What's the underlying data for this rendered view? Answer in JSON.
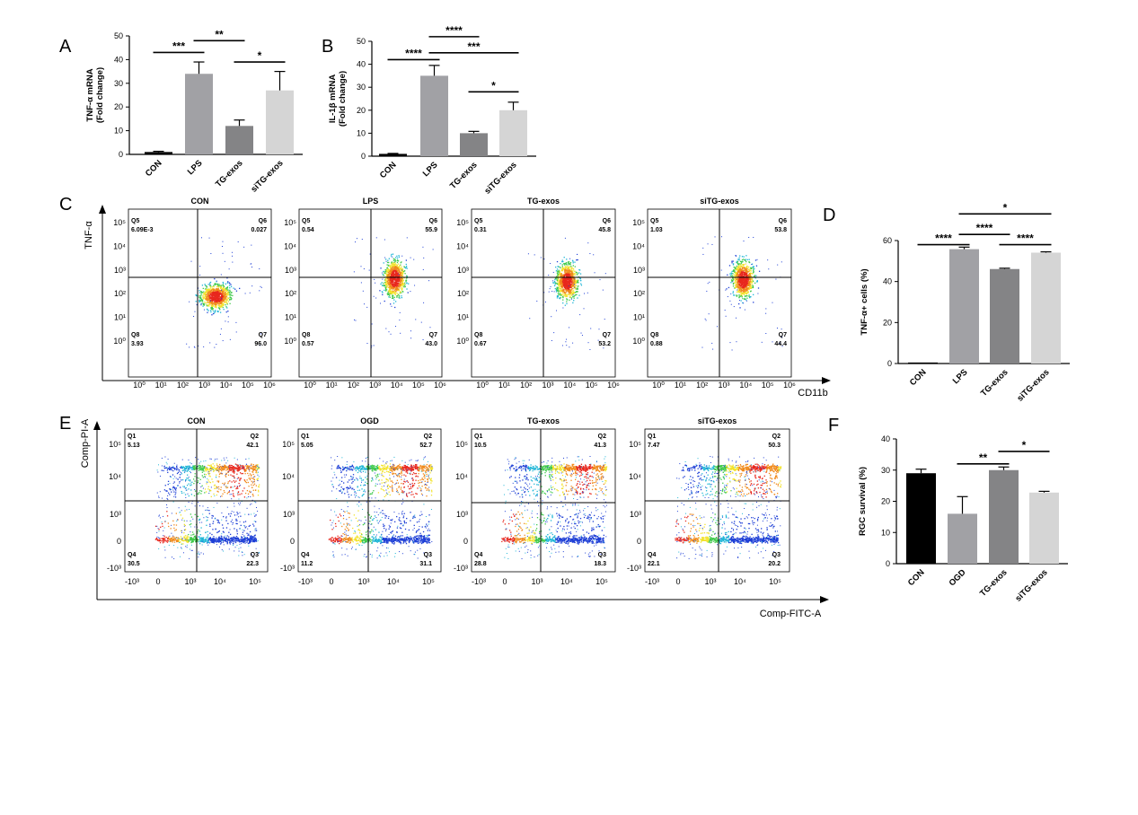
{
  "figure": {
    "panel_labels": [
      "A",
      "B",
      "C",
      "D",
      "E",
      "F"
    ],
    "flow_c": {
      "x_axis_label": "CD11b",
      "y_axis_label": "TNF-α",
      "x_ticks": [
        "10⁰",
        "10¹",
        "10²",
        "10³",
        "10⁴",
        "10⁵",
        "10⁶"
      ],
      "y_ticks": [
        "10⁰",
        "10¹",
        "10²",
        "10³",
        "10⁴",
        "10⁵"
      ]
    },
    "flow_e": {
      "x_axis_label": "Comp-FITC-A",
      "y_axis_label": "Comp-PI-A",
      "x_ticks": [
        "-10³",
        "0",
        "10³",
        "10⁴",
        "10⁵"
      ],
      "y_ticks": [
        "10⁵",
        "10⁴",
        "10³",
        "0",
        "-10³"
      ]
    }
  },
  "chart_data": [
    {
      "panel": "A",
      "type": "bar",
      "categories": [
        "CON",
        "LPS",
        "TG-exos",
        "siTG-exos"
      ],
      "values": [
        1,
        34,
        12,
        27
      ],
      "errors": [
        0.3,
        5,
        2.5,
        8
      ],
      "colors": [
        "#000000",
        "#a1a1a5",
        "#848486",
        "#d5d5d5"
      ],
      "ylabel": "TNF-α mRNA\n(Fold change)",
      "ylim": [
        0,
        50
      ],
      "yticks": [
        0,
        10,
        20,
        30,
        40,
        50
      ],
      "annotations": [
        {
          "from": "CON",
          "to": "LPS",
          "label": "***",
          "y": 43
        },
        {
          "from": "LPS",
          "to": "TG-exos",
          "label": "**",
          "y": 48
        },
        {
          "from": "TG-exos",
          "to": "siTG-exos",
          "label": "*",
          "y": 39
        }
      ]
    },
    {
      "panel": "B",
      "type": "bar",
      "categories": [
        "CON",
        "LPS",
        "TG-exos",
        "siTG-exos"
      ],
      "values": [
        1,
        35,
        10,
        20
      ],
      "errors": [
        0.2,
        4.5,
        0.8,
        3.5
      ],
      "colors": [
        "#000000",
        "#a1a1a5",
        "#848486",
        "#d5d5d5"
      ],
      "ylabel": "IL-1β mRNA\n(Fold change)",
      "ylim": [
        0,
        50
      ],
      "yticks": [
        0,
        10,
        20,
        30,
        40,
        50
      ],
      "annotations": [
        {
          "from": "CON",
          "to": "LPS",
          "label": "****",
          "y": 42
        },
        {
          "from": "LPS",
          "to": "TG-exos",
          "label": "****",
          "y": 52
        },
        {
          "from": "LPS",
          "to": "siTG-exos",
          "label": "***",
          "y": 45
        },
        {
          "from": "TG-exos",
          "to": "siTG-exos",
          "label": "*",
          "y": 28
        }
      ]
    },
    {
      "panel": "D",
      "type": "bar",
      "categories": [
        "CON",
        "LPS",
        "TG-exos",
        "siTG-exos"
      ],
      "values": [
        0.5,
        55.8,
        46.1,
        54.1
      ],
      "errors": [
        0,
        1,
        0.4,
        0.4
      ],
      "colors": [
        "#000000",
        "#a1a1a5",
        "#848486",
        "#d5d5d5"
      ],
      "ylabel": "TNF-α+ cells (%)",
      "ylim": [
        0,
        60
      ],
      "yticks": [
        0,
        20,
        40,
        60
      ],
      "annotations": [
        {
          "from": "CON",
          "to": "LPS",
          "label": "****",
          "y": 58
        },
        {
          "from": "LPS",
          "to": "TG-exos",
          "label": "****",
          "y": 63
        },
        {
          "from": "TG-exos",
          "to": "siTG-exos",
          "label": "****",
          "y": 58
        },
        {
          "from": "LPS",
          "to": "siTG-exos",
          "label": "*",
          "y": 73
        }
      ]
    },
    {
      "panel": "F",
      "type": "bar",
      "categories": [
        "CON",
        "OGD",
        "TG-exos",
        "siTG-exos"
      ],
      "values": [
        29,
        16,
        30,
        22.8
      ],
      "errors": [
        1.3,
        5.5,
        1,
        0.4
      ],
      "colors": [
        "#000000",
        "#a1a1a5",
        "#848486",
        "#d5d5d5"
      ],
      "ylabel": "RGC survival (%)",
      "ylim": [
        0,
        40
      ],
      "yticks": [
        0,
        10,
        20,
        30,
        40
      ],
      "annotations": [
        {
          "from": "OGD",
          "to": "TG-exos",
          "label": "**",
          "y": 32
        },
        {
          "from": "TG-exos",
          "to": "siTG-exos",
          "label": "*",
          "y": 36
        }
      ]
    },
    {
      "panel": "C",
      "type": "scatter",
      "plots": [
        {
          "title": "CON",
          "quadrants": {
            "Q5": "6.09E-3",
            "Q6": "0.027",
            "Q7": "96.0",
            "Q8": "3.93"
          }
        },
        {
          "title": "LPS",
          "quadrants": {
            "Q5": "0.54",
            "Q6": "55.9",
            "Q7": "43.0",
            "Q8": "0.57"
          }
        },
        {
          "title": "TG-exos",
          "quadrants": {
            "Q5": "0.31",
            "Q6": "45.8",
            "Q7": "53.2",
            "Q8": "0.67"
          }
        },
        {
          "title": "siTG-exos",
          "quadrants": {
            "Q5": "1.03",
            "Q6": "53.8",
            "Q7": "44.4",
            "Q8": "0.88"
          }
        }
      ]
    },
    {
      "panel": "E",
      "type": "scatter",
      "plots": [
        {
          "title": "CON",
          "quadrants": {
            "Q1": "5.13",
            "Q2": "42.1",
            "Q3": "22.3",
            "Q4": "30.5"
          }
        },
        {
          "title": "OGD",
          "quadrants": {
            "Q1": "5.05",
            "Q2": "52.7",
            "Q3": "31.1",
            "Q4": "11.2"
          }
        },
        {
          "title": "TG-exos",
          "quadrants": {
            "Q1": "10.5",
            "Q2": "41.3",
            "Q3": "18.3",
            "Q4": "28.8"
          }
        },
        {
          "title": "siTG-exos",
          "quadrants": {
            "Q1": "7.47",
            "Q2": "50.3",
            "Q3": "20.2",
            "Q4": "22.1"
          }
        }
      ]
    }
  ]
}
